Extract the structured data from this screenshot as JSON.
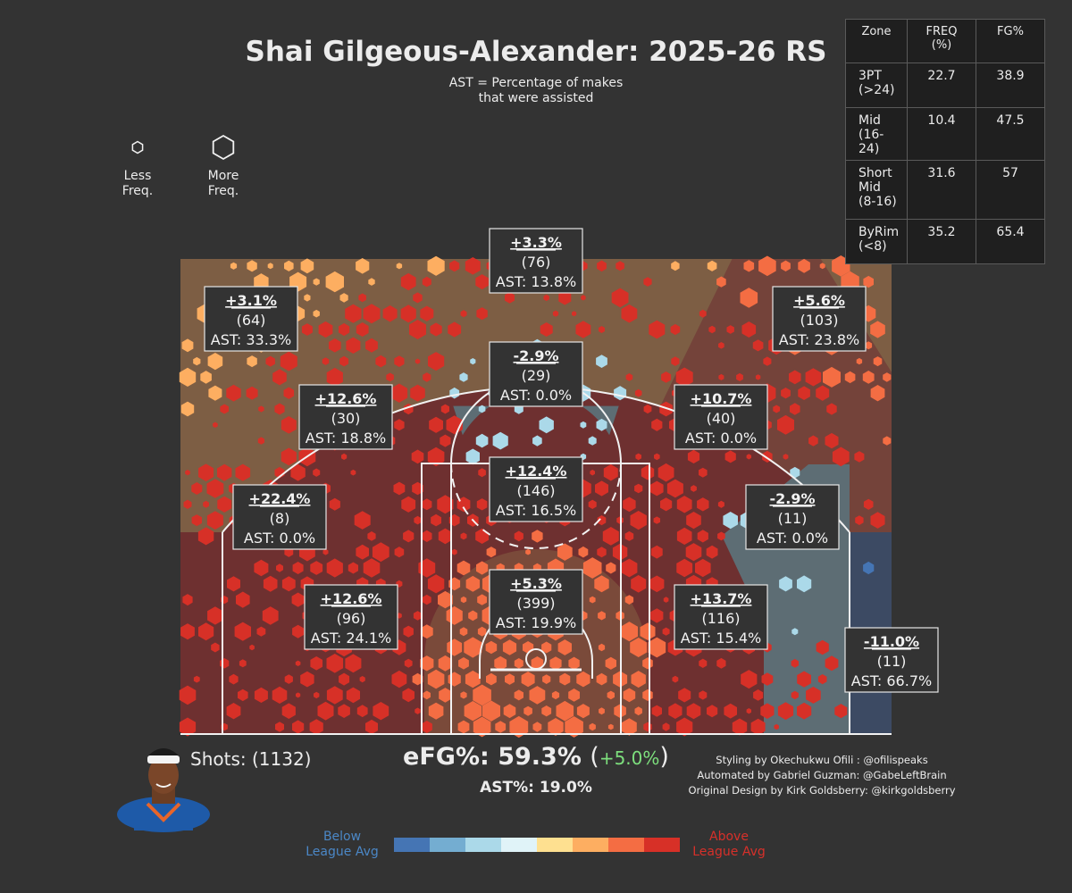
{
  "title": "Shai Gilgeous-Alexander: 2025-26 RS",
  "subtitle_lines": [
    "AST = Percentage of makes",
    "that were assisted"
  ],
  "size_legend": {
    "less": "Less\nFreq.",
    "more": "More\nFreq."
  },
  "zone_table": {
    "headers": [
      "Zone",
      "FREQ\n(%)",
      "FG%"
    ],
    "rows": [
      {
        "zone": "3PT\n(>24)",
        "freq": "22.7",
        "fg": "38.9"
      },
      {
        "zone": "Mid\n(16-24)",
        "freq": "10.4",
        "fg": "47.5"
      },
      {
        "zone": "Short\nMid\n(8-16)",
        "freq": "31.6",
        "fg": "57"
      },
      {
        "zone": "ByRim\n(<8)",
        "freq": "35.2",
        "fg": "65.4"
      }
    ]
  },
  "footer": {
    "shots": "Shots: (1132)",
    "efg_label": "eFG%: 59.3%",
    "efg_delta": "+5.0%",
    "ast_pct": "AST%: 19.0%",
    "credits": [
      "Styling by Okechukwu Ofili : @ofilispeaks",
      "Automated by Gabriel Guzman: @GabeLeftBrain",
      "Original Design by Kirk Goldsberry: @kirkgoldsberry"
    ]
  },
  "colorbar": {
    "below_label": "Below\nLeague Avg",
    "above_label": "Above\nLeague Avg",
    "colors": [
      "#4575b4",
      "#74add1",
      "#abd9e9",
      "#e0f3f8",
      "#fee090",
      "#fdae61",
      "#f46d43",
      "#d73027"
    ]
  },
  "chart_data": {
    "type": "hexbin shot chart",
    "zones": [
      {
        "id": "rim",
        "diff": "+5.3%",
        "shots": 399,
        "ast": "AST: 19.9%",
        "color": "#7a4a3a"
      },
      {
        "id": "paint-short",
        "diff": "+12.4%",
        "shots": 146,
        "ast": "AST: 16.5%",
        "color": "#6e3030"
      },
      {
        "id": "short-left",
        "diff": "+12.6%",
        "shots": 96,
        "ast": "AST: 24.1%",
        "color": "#6e3030"
      },
      {
        "id": "short-right",
        "diff": "+13.7%",
        "shots": 116,
        "ast": "AST: 15.4%",
        "color": "#6e3030"
      },
      {
        "id": "mid-left-baseline",
        "diff": "+22.4%",
        "shots": 8,
        "ast": "AST: 0.0%",
        "color": "#6e3030"
      },
      {
        "id": "mid-left-wing",
        "diff": "+12.6%",
        "shots": 30,
        "ast": "AST: 18.8%",
        "color": "#6e3030"
      },
      {
        "id": "mid-center",
        "diff": "-2.9%",
        "shots": 29,
        "ast": "AST: 0.0%",
        "color": "#5d6d74"
      },
      {
        "id": "mid-right-wing",
        "diff": "+10.7%",
        "shots": 40,
        "ast": "AST: 0.0%",
        "color": "#6e3030"
      },
      {
        "id": "mid-right-baseline",
        "diff": "-2.9%",
        "shots": 11,
        "ast": "AST: 0.0%",
        "color": "#5d6d74"
      },
      {
        "id": "three-left-wing",
        "diff": "+3.1%",
        "shots": 64,
        "ast": "AST: 33.3%",
        "color": "#7d5e44"
      },
      {
        "id": "three-top",
        "diff": "+3.3%",
        "shots": 76,
        "ast": "AST: 13.8%",
        "color": "#7d5e44"
      },
      {
        "id": "three-right-wing",
        "diff": "+5.6%",
        "shots": 103,
        "ast": "AST: 23.8%",
        "color": "#74433a"
      },
      {
        "id": "three-right-corner",
        "diff": "-11.0%",
        "shots": 11,
        "ast": "AST: 66.7%",
        "color": "#3c4a63"
      }
    ]
  }
}
